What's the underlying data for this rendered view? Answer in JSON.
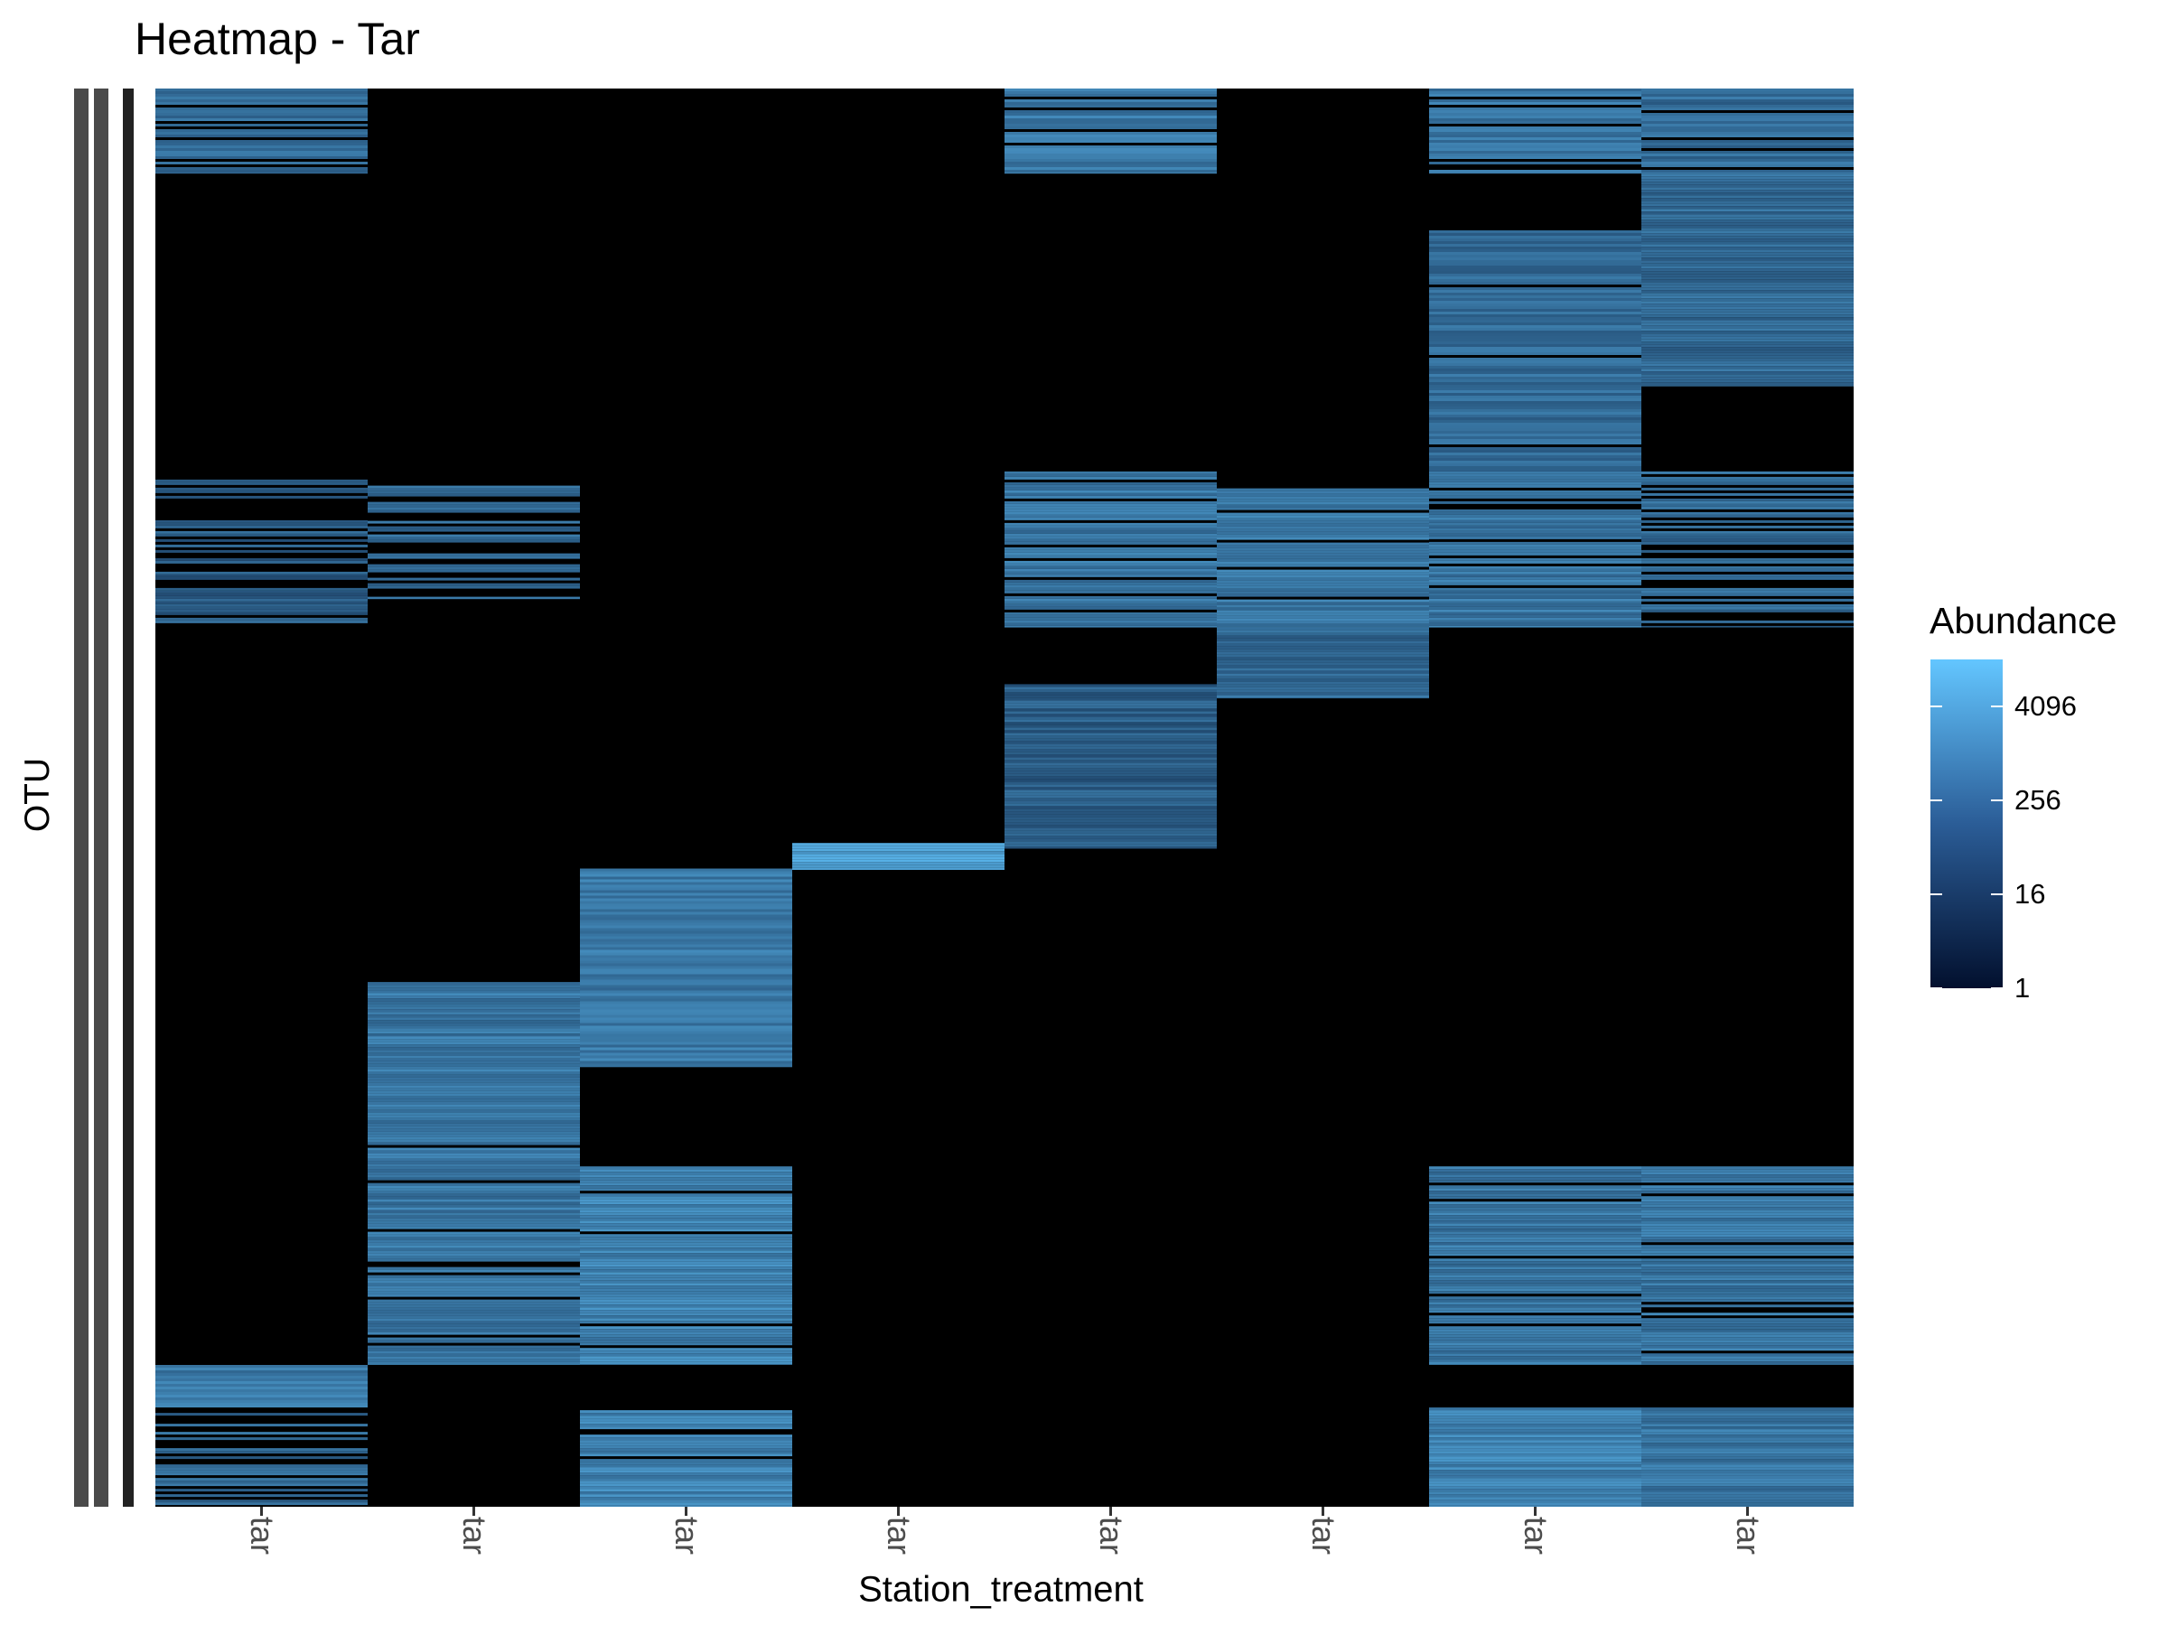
{
  "chart_data": {
    "type": "heatmap",
    "title": "Heatmap - Tar",
    "xlabel": "Station_treatment",
    "ylabel": "OTU",
    "x_categories": [
      "tar",
      "tar",
      "tar",
      "tar",
      "tar",
      "tar",
      "tar",
      "tar"
    ],
    "color_scale": {
      "label": "Abundance",
      "transform": "log2",
      "breaks": [
        1,
        16,
        256,
        4096
      ],
      "break_labels": [
        "1",
        "16",
        "256",
        "4096"
      ],
      "low_color": "#02102e",
      "high_color": "#63c6ff",
      "zero_color": "#000000",
      "min": 1,
      "max": 16384
    },
    "column_blocks_approx_log2_abundance": [
      {
        "column": 1,
        "rows_fraction": [
          0.0,
          0.06
        ],
        "level": 7,
        "density": 0.6
      },
      {
        "column": 1,
        "rows_fraction": [
          0.27,
          0.38
        ],
        "level": 6,
        "density": 0.5
      },
      {
        "column": 1,
        "rows_fraction": [
          0.9,
          0.93
        ],
        "level": 8,
        "density": 1.0
      },
      {
        "column": 1,
        "rows_fraction": [
          0.93,
          1.0
        ],
        "level": 7,
        "density": 0.45
      },
      {
        "column": 2,
        "rows_fraction": [
          0.28,
          0.36
        ],
        "level": 7,
        "density": 0.6
      },
      {
        "column": 2,
        "rows_fraction": [
          0.63,
          0.68
        ],
        "level": 8,
        "density": 1.0
      },
      {
        "column": 2,
        "rows_fraction": [
          0.68,
          0.9
        ],
        "level": 8,
        "density": 0.9
      },
      {
        "column": 3,
        "rows_fraction": [
          0.55,
          0.69
        ],
        "level": 8,
        "density": 1.0
      },
      {
        "column": 3,
        "rows_fraction": [
          0.76,
          0.9
        ],
        "level": 9,
        "density": 0.95
      },
      {
        "column": 3,
        "rows_fraction": [
          0.93,
          1.0
        ],
        "level": 9,
        "density": 0.9
      },
      {
        "column": 4,
        "rows_fraction": [
          0.532,
          0.551
        ],
        "level": 11,
        "density": 1.0
      },
      {
        "column": 5,
        "rows_fraction": [
          0.0,
          0.06
        ],
        "level": 8,
        "density": 0.8
      },
      {
        "column": 5,
        "rows_fraction": [
          0.27,
          0.38
        ],
        "level": 8,
        "density": 0.85
      },
      {
        "column": 5,
        "rows_fraction": [
          0.42,
          0.536
        ],
        "level": 6,
        "density": 1.0
      },
      {
        "column": 6,
        "rows_fraction": [
          0.28,
          0.38
        ],
        "level": 8,
        "density": 0.8
      },
      {
        "column": 6,
        "rows_fraction": [
          0.38,
          0.43
        ],
        "level": 7,
        "density": 1.0
      },
      {
        "column": 7,
        "rows_fraction": [
          0.0,
          0.06
        ],
        "level": 8,
        "density": 0.8
      },
      {
        "column": 7,
        "rows_fraction": [
          0.1,
          0.27
        ],
        "level": 7,
        "density": 0.95
      },
      {
        "column": 7,
        "rows_fraction": [
          0.27,
          0.38
        ],
        "level": 8,
        "density": 0.8
      },
      {
        "column": 7,
        "rows_fraction": [
          0.76,
          0.9
        ],
        "level": 8,
        "density": 0.9
      },
      {
        "column": 7,
        "rows_fraction": [
          0.93,
          1.0
        ],
        "level": 9,
        "density": 1.0
      },
      {
        "column": 8,
        "rows_fraction": [
          0.0,
          0.06
        ],
        "level": 7,
        "density": 0.8
      },
      {
        "column": 8,
        "rows_fraction": [
          0.06,
          0.21
        ],
        "level": 7,
        "density": 1.0
      },
      {
        "column": 8,
        "rows_fraction": [
          0.27,
          0.38
        ],
        "level": 7,
        "density": 0.6
      },
      {
        "column": 8,
        "rows_fraction": [
          0.76,
          0.9
        ],
        "level": 8,
        "density": 0.85
      },
      {
        "column": 8,
        "rows_fraction": [
          0.93,
          1.0
        ],
        "level": 8,
        "density": 1.0
      }
    ],
    "grid": false,
    "legend_position": "right"
  }
}
